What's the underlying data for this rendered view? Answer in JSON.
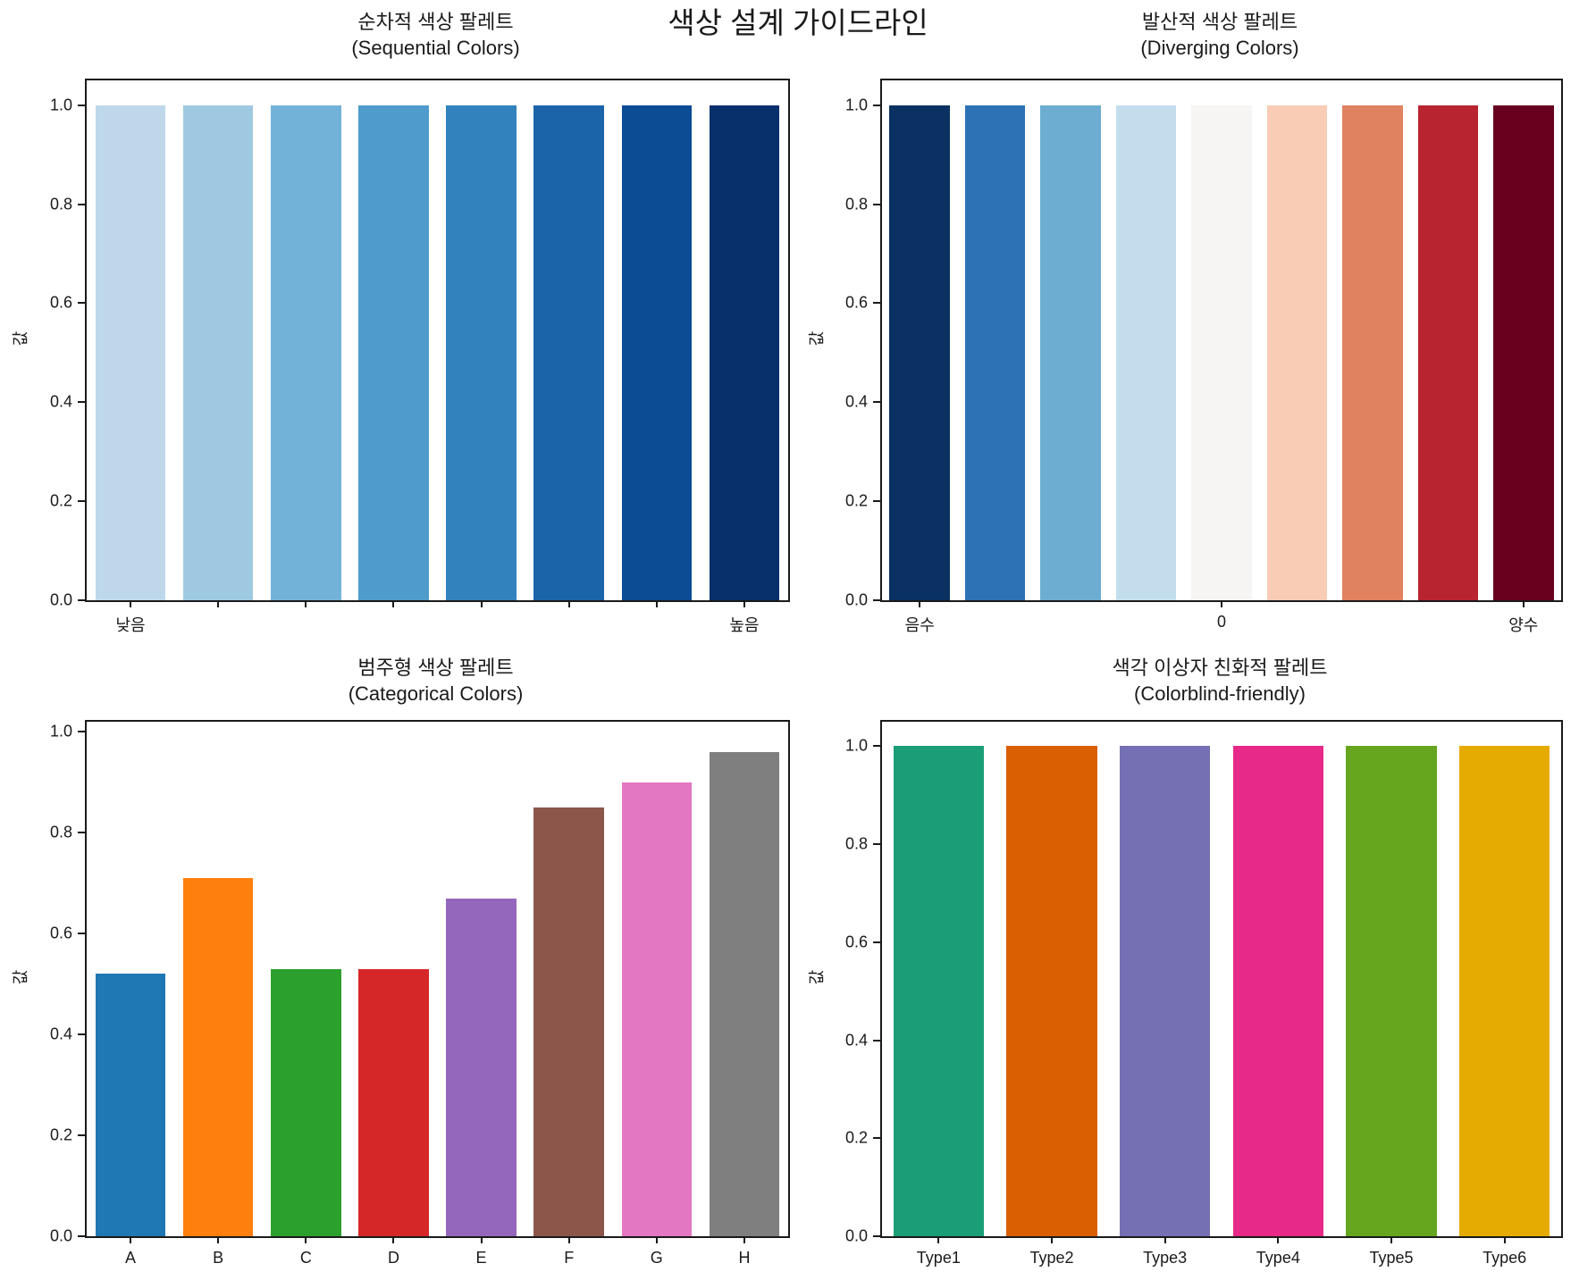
{
  "figure": {
    "title": "색상 설계 가이드라인",
    "background": "#ffffff",
    "text_color": "#1a1a1a"
  },
  "chart_data": [
    {
      "id": "sequential",
      "type": "bar",
      "title_ko": "순차적 색상 팔레트",
      "title_en": "(Sequential Colors)",
      "ylabel": "값",
      "categories": [
        "낮음",
        "",
        "",
        "",
        "",
        "",
        "",
        "높음"
      ],
      "values": [
        1.0,
        1.0,
        1.0,
        1.0,
        1.0,
        1.0,
        1.0,
        1.0
      ],
      "colors": [
        "#bed8ea",
        "#9fc9e1",
        "#73b2d8",
        "#4f9bcb",
        "#3282bd",
        "#1b64a9",
        "#0c4c94",
        "#08306b"
      ],
      "ylim": [
        0,
        1.05
      ],
      "yticks": [
        "0.0",
        "0.2",
        "0.4",
        "0.6",
        "0.8",
        "1.0"
      ],
      "xtick_marks": [
        0,
        1,
        2,
        3,
        4,
        5,
        6,
        7
      ],
      "grid": false,
      "legend": false
    },
    {
      "id": "diverging",
      "type": "bar",
      "title_ko": "발산적 색상 팔레트",
      "title_en": "(Diverging Colors)",
      "ylabel": "값",
      "categories": [
        "음수",
        "",
        "",
        "",
        "0",
        "",
        "",
        "",
        "양수"
      ],
      "values": [
        1.0,
        1.0,
        1.0,
        1.0,
        1.0,
        1.0,
        1.0,
        1.0,
        1.0
      ],
      "colors": [
        "#0a3161",
        "#2d72b4",
        "#6cadd1",
        "#c3ddec",
        "#f6f5f4",
        "#f9ccb5",
        "#e0815f",
        "#b82430",
        "#67001f"
      ],
      "ylim": [
        0,
        1.05
      ],
      "yticks": [
        "0.0",
        "0.2",
        "0.4",
        "0.6",
        "0.8",
        "1.0"
      ],
      "xtick_marks": [
        0,
        4,
        8
      ],
      "grid": false,
      "legend": false
    },
    {
      "id": "categorical",
      "type": "bar",
      "title_ko": "범주형 색상 팔레트",
      "title_en": "(Categorical Colors)",
      "ylabel": "값",
      "categories": [
        "A",
        "B",
        "C",
        "D",
        "E",
        "F",
        "G",
        "H"
      ],
      "values": [
        0.52,
        0.71,
        0.53,
        0.53,
        0.67,
        0.85,
        0.9,
        0.96
      ],
      "colors": [
        "#1f77b4",
        "#ff7f0e",
        "#2ca02c",
        "#d62728",
        "#9467bd",
        "#8c564b",
        "#e377c2",
        "#7f7f7f"
      ],
      "ylim": [
        0,
        1.02
      ],
      "yticks": [
        "0.0",
        "0.2",
        "0.4",
        "0.6",
        "0.8",
        "1.0"
      ],
      "xtick_marks": [
        0,
        1,
        2,
        3,
        4,
        5,
        6,
        7
      ],
      "grid": false,
      "legend": false
    },
    {
      "id": "colorblind",
      "type": "bar",
      "title_ko": "색각 이상자 친화적 팔레트",
      "title_en": "(Colorblind-friendly)",
      "ylabel": "값",
      "categories": [
        "Type1",
        "Type2",
        "Type3",
        "Type4",
        "Type5",
        "Type6"
      ],
      "values": [
        1.0,
        1.0,
        1.0,
        1.0,
        1.0,
        1.0
      ],
      "colors": [
        "#1b9e77",
        "#d95f02",
        "#7570b3",
        "#e7298a",
        "#66a61e",
        "#e6ab02"
      ],
      "ylim": [
        0,
        1.05
      ],
      "yticks": [
        "0.0",
        "0.2",
        "0.4",
        "0.6",
        "0.8",
        "1.0"
      ],
      "xtick_marks": [
        0,
        1,
        2,
        3,
        4,
        5
      ],
      "grid": false,
      "legend": false
    }
  ]
}
